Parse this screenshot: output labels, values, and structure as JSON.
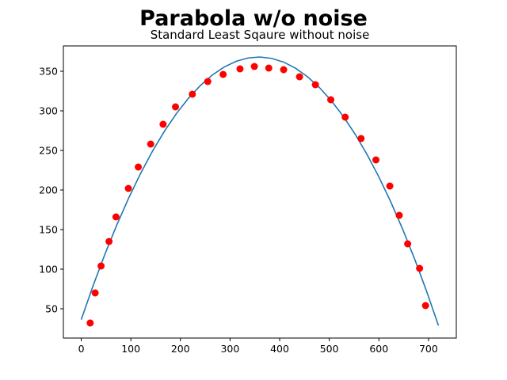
{
  "chart_data": {
    "type": "scatter",
    "suptitle": "Parabola w/o noise",
    "title": "Standard Least Sqaure without noise",
    "xlabel": "",
    "ylabel": "",
    "xlim": [
      -36,
      756
    ],
    "ylim": [
      13,
      382
    ],
    "xticks": [
      0,
      100,
      200,
      300,
      400,
      500,
      600,
      700
    ],
    "yticks": [
      50,
      100,
      150,
      200,
      250,
      300,
      350
    ],
    "grid": false,
    "colors": {
      "points": "#ff0000",
      "fit": "#1f77b4"
    },
    "series": [
      {
        "kind": "points",
        "x": [
          18,
          28,
          40,
          56,
          70,
          95,
          115,
          140,
          165,
          190,
          224,
          255,
          286,
          320,
          349,
          378,
          408,
          440,
          472,
          503,
          532,
          564,
          594,
          622,
          641,
          658,
          682,
          694
        ],
        "y": [
          32,
          70,
          104,
          135,
          166,
          202,
          229,
          258,
          283,
          305,
          321,
          337,
          346,
          353,
          356,
          354,
          352,
          343,
          333,
          314,
          292,
          265,
          238,
          205,
          168,
          132,
          101,
          54
        ]
      },
      {
        "kind": "fit-line",
        "a": -0.002588,
        "h": 358,
        "k": 368,
        "x_range": [
          0,
          720
        ]
      }
    ]
  }
}
